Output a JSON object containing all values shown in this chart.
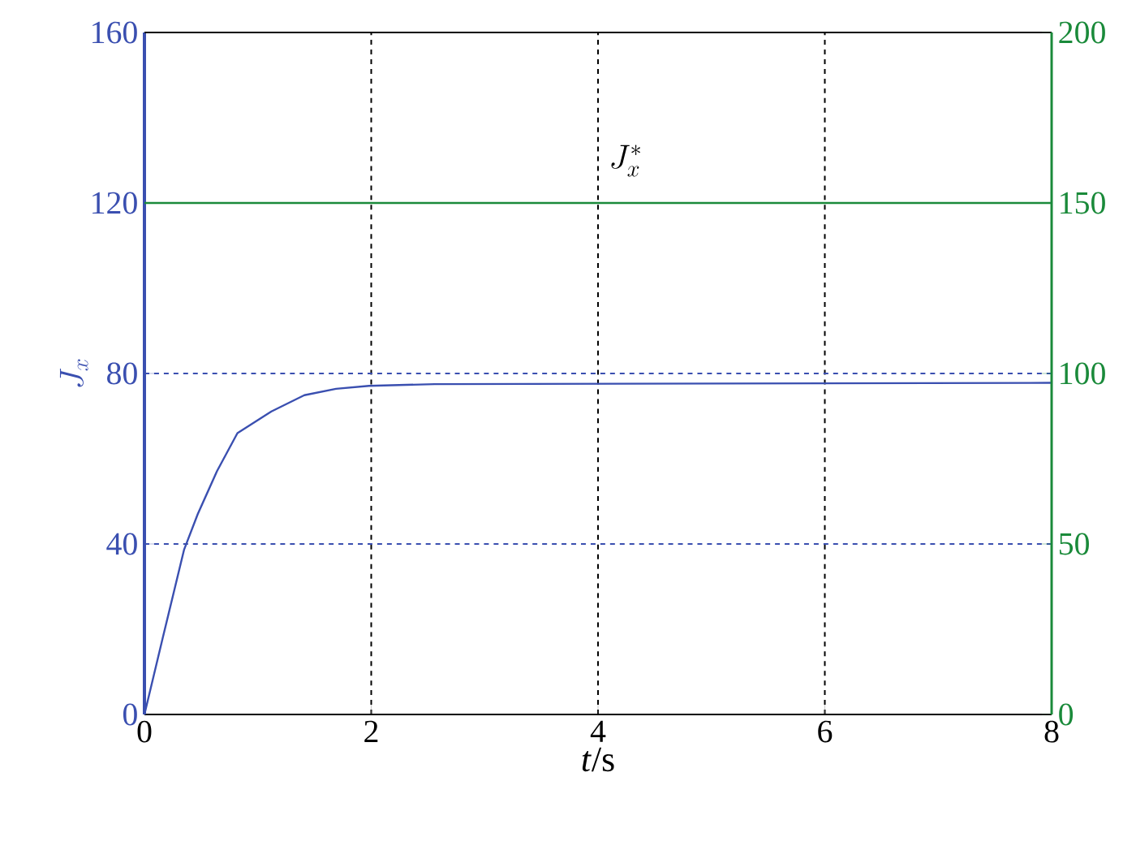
{
  "chart_data": {
    "type": "line",
    "xlabel": "*t*/s",
    "ylabel": "J_x",
    "xlim": [
      0,
      8
    ],
    "xticks": [
      0,
      2,
      4,
      6,
      8
    ],
    "ylim": [
      0,
      160
    ],
    "yticks": [
      0,
      40,
      80,
      120,
      160
    ],
    "y2lim": [
      0,
      200
    ],
    "y2ticks": [
      0,
      50,
      100,
      150,
      200
    ],
    "grid": "x",
    "line_style": "solid",
    "ref_lines": [
      {
        "axis": "y",
        "value": 40,
        "color": "#3a4fb0",
        "line_style": "dashed"
      },
      {
        "axis": "y",
        "value": 80,
        "color": "#3a4fb0",
        "line_style": "dashed"
      }
    ],
    "series": [
      {
        "color": "#3a4fb0",
        "x": [
          0,
          0.16,
          0.35,
          0.47,
          0.64,
          0.82,
          1.12,
          1.41,
          1.69,
          1.98,
          2.56,
          8
        ],
        "values": [
          0,
          17.8,
          38.7,
          47,
          57.1,
          66,
          71.1,
          74.9,
          76.4,
          77.1,
          77.5,
          77.8
        ]
      },
      {
        "color": "#1a8a3a",
        "axis": "y2",
        "x": [
          0,
          8
        ],
        "values": [
          150,
          150
        ]
      }
    ],
    "annotations": [
      "J_x^*"
    ]
  }
}
